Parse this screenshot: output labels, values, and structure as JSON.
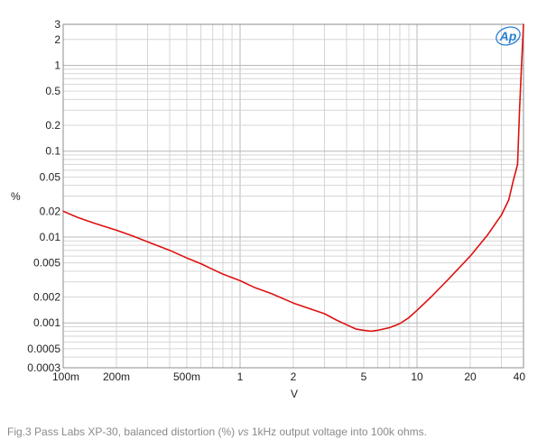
{
  "caption": {
    "prefix": "Fig.3 Pass Labs XP-30, balanced distortion (%)",
    "italic": "vs",
    "suffix": "1kHz output voltage into 100k ohms."
  },
  "logo": {
    "text": "Ap",
    "color": "#2a7fd4"
  },
  "chart_data": {
    "type": "line",
    "title": "",
    "xlabel": "V",
    "ylabel": "%",
    "xscale": "log",
    "yscale": "log",
    "xlim": [
      0.1,
      40
    ],
    "ylim": [
      0.0003,
      3
    ],
    "grid": true,
    "x_ticks": [
      {
        "value": 0.1,
        "label": "100m"
      },
      {
        "value": 0.2,
        "label": "200m"
      },
      {
        "value": 0.5,
        "label": "500m"
      },
      {
        "value": 1,
        "label": "1"
      },
      {
        "value": 2,
        "label": "2"
      },
      {
        "value": 5,
        "label": "5"
      },
      {
        "value": 10,
        "label": "10"
      },
      {
        "value": 20,
        "label": "20"
      },
      {
        "value": 40,
        "label": "40"
      }
    ],
    "y_ticks": [
      {
        "value": 3,
        "label": "3"
      },
      {
        "value": 2,
        "label": "2"
      },
      {
        "value": 1,
        "label": "1"
      },
      {
        "value": 0.5,
        "label": "0.5"
      },
      {
        "value": 0.2,
        "label": "0.2"
      },
      {
        "value": 0.1,
        "label": "0.1"
      },
      {
        "value": 0.05,
        "label": "0.05"
      },
      {
        "value": 0.02,
        "label": "0.02"
      },
      {
        "value": 0.01,
        "label": "0.01"
      },
      {
        "value": 0.005,
        "label": "0.005"
      },
      {
        "value": 0.002,
        "label": "0.002"
      },
      {
        "value": 0.001,
        "label": "0.001"
      },
      {
        "value": 0.0005,
        "label": "0.0005"
      },
      {
        "value": 0.0003,
        "label": "0.0003"
      }
    ],
    "series": [
      {
        "color": "#dd1111",
        "x": [
          0.1,
          0.12,
          0.15,
          0.2,
          0.25,
          0.3,
          0.4,
          0.5,
          0.6,
          0.7,
          0.8,
          1.0,
          1.2,
          1.5,
          2.0,
          2.5,
          3.0,
          3.5,
          4.0,
          4.5,
          5.0,
          5.5,
          6.0,
          7.0,
          8.0,
          9.0,
          10.0,
          12.0,
          15.0,
          20.0,
          25.0,
          30.0,
          33.0,
          35.0,
          37.0,
          38.0,
          39.0,
          40.0
        ],
        "y": [
          0.02,
          0.017,
          0.0145,
          0.012,
          0.0102,
          0.0088,
          0.007,
          0.0057,
          0.0049,
          0.0042,
          0.0037,
          0.0031,
          0.0026,
          0.0022,
          0.0017,
          0.00145,
          0.00128,
          0.00108,
          0.00095,
          0.00085,
          0.00082,
          0.0008,
          0.00082,
          0.00088,
          0.00098,
          0.00115,
          0.0014,
          0.002,
          0.0032,
          0.006,
          0.0105,
          0.018,
          0.027,
          0.045,
          0.07,
          0.3,
          1.0,
          3.0
        ]
      }
    ]
  }
}
